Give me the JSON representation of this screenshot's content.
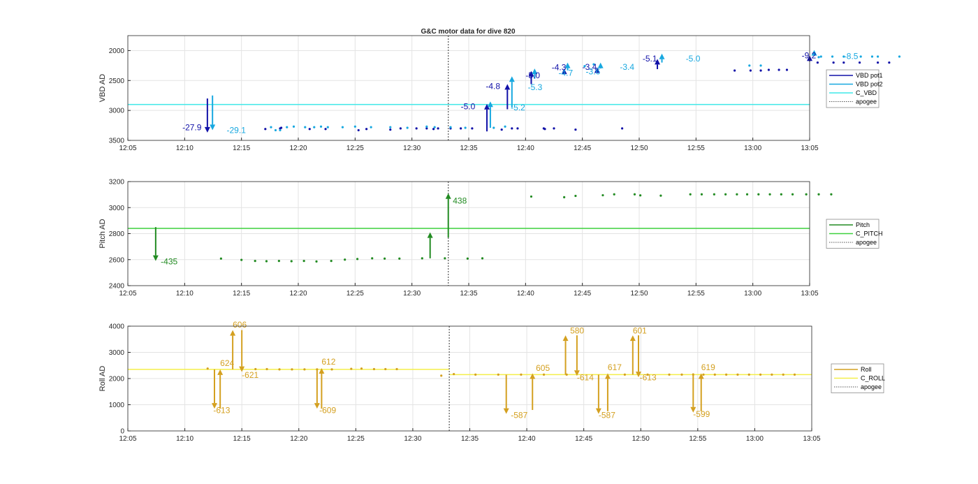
{
  "figure": {
    "title": "G&C motor data for dive 820"
  },
  "colors": {
    "pot1": "#1111a8",
    "pot2": "#17a8e0",
    "cvbd": "#3fe8e8",
    "pitch": "#228b22",
    "cpitch": "#3dd13d",
    "roll": "#d4a020",
    "croll": "#f4ef4a",
    "apogee": "#555555",
    "grid": "#e3e3e3",
    "axis": "#262626"
  },
  "chart_data": [
    {
      "id": "vbd",
      "type": "scatter",
      "ylabel": "VBD AD",
      "x_ticks": [
        "12:05",
        "12:10",
        "12:15",
        "12:20",
        "12:25",
        "12:30",
        "12:35",
        "12:40",
        "12:45",
        "12:50",
        "12:55",
        "13:00",
        "13:05"
      ],
      "y_ticks": [
        2000,
        2500,
        3000,
        3500
      ],
      "xlim": [
        "12:05",
        "13:05"
      ],
      "ylim": [
        1750,
        3500
      ],
      "y_reversed": true,
      "grid": true,
      "apogee_x": "12:33.2",
      "hlines": [
        {
          "series": "C_VBD",
          "y": 2900,
          "color_key": "cvbd"
        }
      ],
      "dots": [
        {
          "series": "VBD pot1",
          "color_key": "pot1",
          "x": [
            12.1,
            13.4,
            13.5,
            16,
            17.4,
            20.3,
            21,
            23.1,
            24,
            25.4,
            26.3,
            26.9,
            27.3,
            28.4,
            29.3,
            30.3,
            32.9,
            33.8,
            34.3,
            36.6,
            36.7,
            37.5,
            39.4,
            43.5,
            53.4,
            54.8,
            55.7,
            56.4,
            57.3,
            58,
            60.7,
            62.1,
            63,
            64.4,
            66,
            67
          ],
          "y": [
            3310,
            3300,
            3290,
            3310,
            3310,
            3330,
            3310,
            3320,
            3300,
            3300,
            3300,
            3310,
            3300,
            3300,
            3300,
            3300,
            3320,
            3300,
            3300,
            3300,
            3310,
            3300,
            3320,
            3300,
            2333,
            2333,
            2333,
            2322,
            2322,
            2322,
            2200,
            2200,
            2200,
            2200,
            2200,
            2200
          ]
        },
        {
          "series": "VBD pot2",
          "color_key": "pot2",
          "x": [
            12.6,
            13,
            13.4,
            14,
            14.6,
            15.6,
            16.4,
            17,
            17.6,
            18.9,
            20,
            21.4,
            23.1,
            24.6,
            26.3,
            27,
            28.4,
            29.7,
            32.2,
            33.2,
            40.2,
            41,
            54.7,
            55.7,
            60.8,
            61,
            62,
            63,
            64.5,
            65.5,
            66,
            67.9
          ],
          "y": [
            3280,
            3330,
            3330,
            3280,
            3270,
            3280,
            3280,
            3270,
            3280,
            3280,
            3270,
            3280,
            3280,
            3290,
            3270,
            3280,
            3280,
            3290,
            3290,
            3270,
            2260,
            2230,
            2250,
            2250,
            2110,
            2100,
            2100,
            2100,
            2100,
            2100,
            2100,
            2100
          ]
        }
      ],
      "arrows": [
        {
          "color_key": "pot1",
          "x": 7.0,
          "y0": 2800,
          "y1": 3370
        },
        {
          "color_key": "pot2",
          "x": 7.45,
          "y0": 2750,
          "y1": 3330
        },
        {
          "color_key": "pot1",
          "x": 31.6,
          "y0": 3350,
          "y1": 2890
        },
        {
          "color_key": "pot2",
          "x": 31.9,
          "y0": 3290,
          "y1": 2850
        },
        {
          "color_key": "pot1",
          "x": 33.4,
          "y0": 2980,
          "y1": 2560
        },
        {
          "color_key": "pot2",
          "x": 33.8,
          "y0": 2950,
          "y1": 2430
        },
        {
          "color_key": "pot1",
          "x": 35.5,
          "y0": 2560,
          "y1": 2340
        },
        {
          "color_key": "pot2",
          "x": 35.8,
          "y0": 2470,
          "y1": 2300
        },
        {
          "color_key": "pot1",
          "x": 38.4,
          "y0": 2400,
          "y1": 2300
        },
        {
          "color_key": "pot2",
          "x": 38.7,
          "y0": 2330,
          "y1": 2200
        },
        {
          "color_key": "pot1",
          "x": 41.3,
          "y0": 2350,
          "y1": 2280
        },
        {
          "color_key": "pot2",
          "x": 41.6,
          "y0": 2300,
          "y1": 2200
        },
        {
          "color_key": "pot1",
          "x": 46.6,
          "y0": 2310,
          "y1": 2140
        },
        {
          "color_key": "pot2",
          "x": 47.0,
          "y0": 2200,
          "y1": 2050
        },
        {
          "color_key": "pot1",
          "x": 60.0,
          "y0": 2180,
          "y1": 2080
        },
        {
          "color_key": "pot2",
          "x": 60.4,
          "y0": 2070,
          "y1": 1990
        }
      ],
      "annotations": [
        {
          "text": "-27.9",
          "color_key": "pot1",
          "x": 4.8,
          "y": 3330
        },
        {
          "text": "-29.1",
          "color_key": "pot2",
          "x": 8.7,
          "y": 3380
        },
        {
          "text": "-5.0",
          "color_key": "pot1",
          "x": 29.3,
          "y": 2980
        },
        {
          "text": "-5.2",
          "color_key": "pot2",
          "x": 33.7,
          "y": 3000
        },
        {
          "text": "-4.8",
          "color_key": "pot1",
          "x": 31.5,
          "y": 2640
        },
        {
          "text": "-5.3",
          "color_key": "pot2",
          "x": 35.2,
          "y": 2660
        },
        {
          "text": "-5.0",
          "color_key": "pot1",
          "x": 35.0,
          "y": 2460
        },
        {
          "text": "-4.3",
          "color_key": "pot1",
          "x": 37.3,
          "y": 2330
        },
        {
          "text": "-4.7",
          "color_key": "pot2",
          "x": 37.9,
          "y": 2420
        },
        {
          "text": "-3.4",
          "color_key": "pot1",
          "x": 40.0,
          "y": 2320
        },
        {
          "text": "-3.6",
          "color_key": "pot2",
          "x": 40.3,
          "y": 2400
        },
        {
          "text": "-3.4",
          "color_key": "pot2",
          "x": 43.3,
          "y": 2320
        },
        {
          "text": "-5.1",
          "color_key": "pot1",
          "x": 45.3,
          "y": 2180
        },
        {
          "text": "-5.0",
          "color_key": "pot2",
          "x": 49.1,
          "y": 2180
        },
        {
          "text": "-9.2",
          "color_key": "pot1",
          "x": 59.3,
          "y": 2130
        },
        {
          "text": "-8.5",
          "color_key": "pot2",
          "x": 63.0,
          "y": 2140
        }
      ],
      "legend": {
        "placement": "right",
        "entries": [
          {
            "label": "VBD pot1",
            "color_key": "pot1",
            "style": "solid"
          },
          {
            "label": "VBD pot2",
            "color_key": "pot2",
            "style": "solid"
          },
          {
            "label": "C_VBD",
            "color_key": "cvbd",
            "style": "solid"
          },
          {
            "label": "apogee",
            "color_key": "apogee",
            "style": "dotted"
          }
        ]
      }
    },
    {
      "id": "pitch",
      "type": "scatter",
      "ylabel": "Pitch AD",
      "x_ticks": [
        "12:05",
        "12:10",
        "12:15",
        "12:20",
        "12:25",
        "12:30",
        "12:35",
        "12:40",
        "12:45",
        "12:50",
        "12:55",
        "13:00",
        "13:05"
      ],
      "y_ticks": [
        2400,
        2600,
        2800,
        3000,
        3200
      ],
      "xlim": [
        "12:05",
        "13:05"
      ],
      "ylim": [
        2400,
        3200
      ],
      "y_reversed": false,
      "grid": true,
      "apogee_x": "12:33.2",
      "hlines": [
        {
          "series": "C_PITCH",
          "y": 2840,
          "color_key": "cpitch"
        }
      ],
      "dots": [
        {
          "series": "Pitch",
          "color_key": "pitch",
          "x": [
            8.2,
            10.0,
            11.2,
            12.2,
            13.3,
            14.4,
            15.5,
            16.6,
            17.9,
            19.1,
            20.2,
            21.5,
            22.6,
            23.9,
            25.9,
            27.9,
            29.9,
            31.2,
            35.5,
            38.4,
            39.4,
            41.8,
            42.8,
            44.6,
            45.1,
            46.9,
            49.5,
            50.5,
            51.6,
            52.6,
            53.6,
            54.5,
            55.5,
            56.5,
            57.5,
            58.5,
            59.7,
            60.8,
            61.9
          ],
          "y": [
            2608,
            2598,
            2590,
            2588,
            2590,
            2588,
            2590,
            2586,
            2590,
            2600,
            2605,
            2610,
            2608,
            2608,
            2610,
            2610,
            2608,
            2610,
            3085,
            3080,
            3090,
            3095,
            3102,
            3102,
            3094,
            3092,
            3102,
            3102,
            3102,
            3102,
            3102,
            3102,
            3102,
            3102,
            3102,
            3102,
            3102,
            3102,
            3102
          ]
        }
      ],
      "arrows": [
        {
          "color_key": "pitch",
          "x": 2.45,
          "y0": 2850,
          "y1": 2590
        },
        {
          "color_key": "pitch",
          "x": 26.6,
          "y0": 2610,
          "y1": 2810
        },
        {
          "color_key": "pitch",
          "x": 28.2,
          "y0": 2770,
          "y1": 3110
        }
      ],
      "annotations": [
        {
          "text": "-435",
          "color_key": "pitch",
          "x": 2.9,
          "y": 2565
        },
        {
          "text": "438",
          "color_key": "pitch",
          "x": 28.6,
          "y": 3030
        }
      ],
      "legend": {
        "placement": "right",
        "entries": [
          {
            "label": "Pitch",
            "color_key": "pitch",
            "style": "solid"
          },
          {
            "label": "C_PITCH",
            "color_key": "cpitch",
            "style": "solid"
          },
          {
            "label": "apogee",
            "color_key": "apogee",
            "style": "dotted"
          }
        ]
      }
    },
    {
      "id": "roll",
      "type": "scatter",
      "ylabel": "Roll AD",
      "x_ticks": [
        "12:05",
        "12:10",
        "12:15",
        "12:20",
        "12:25",
        "12:30",
        "12:35",
        "12:40",
        "12:45",
        "12:50",
        "12:55",
        "13:00",
        "13:05"
      ],
      "y_ticks": [
        0,
        1000,
        2000,
        3000,
        4000
      ],
      "xlim": [
        "12:05",
        "13:05"
      ],
      "ylim": [
        0,
        4000
      ],
      "y_reversed": false,
      "grid": true,
      "apogee_x": "12:33.2",
      "hlines": [
        {
          "series": "C_ROLL",
          "y": 2350,
          "color_key": "croll",
          "x_from": "12:05",
          "x_to": "12:33.2"
        },
        {
          "series": "C_ROLL",
          "y": 2150,
          "color_key": "croll",
          "x_from": "12:33.2",
          "x_to": "13:05"
        }
      ],
      "dots": [
        {
          "series": "Roll",
          "color_key": "roll",
          "x": [
            7.0,
            11.2,
            12.2,
            13.3,
            14.4,
            15.5,
            16.6,
            17.9,
            19.6,
            20.5,
            21.6,
            22.6,
            23.6,
            27.5,
            28.6,
            30.5,
            32.5,
            34.5,
            36.5,
            38.5,
            43.6,
            45.6,
            47.5,
            48.6,
            49.6,
            50.5,
            51.5,
            52.5,
            53.5,
            54.5,
            55.5,
            56.5,
            57.5,
            58.5
          ],
          "y": [
            2380,
            2360,
            2360,
            2350,
            2350,
            2350,
            2350,
            2350,
            2370,
            2380,
            2360,
            2360,
            2360,
            2110,
            2170,
            2150,
            2150,
            2150,
            2150,
            2150,
            2150,
            2150,
            2150,
            2150,
            2150,
            2150,
            2150,
            2150,
            2150,
            2150,
            2150,
            2150,
            2150,
            2150
          ]
        }
      ],
      "arrows": [
        {
          "color_key": "roll",
          "x": 7.6,
          "y0": 2350,
          "y1": 850
        },
        {
          "color_key": "roll",
          "x": 8.1,
          "y0": 850,
          "y1": 2350
        },
        {
          "color_key": "roll",
          "x": 9.2,
          "y0": 2350,
          "y1": 3850
        },
        {
          "color_key": "roll",
          "x": 10.0,
          "y0": 3850,
          "y1": 2250
        },
        {
          "color_key": "roll",
          "x": 16.6,
          "y0": 2350,
          "y1": 850
        },
        {
          "color_key": "roll",
          "x": 17.0,
          "y0": 850,
          "y1": 2400
        },
        {
          "color_key": "roll",
          "x": 33.2,
          "y0": 2150,
          "y1": 650
        },
        {
          "color_key": "roll",
          "x": 35.5,
          "y0": 800,
          "y1": 2200
        },
        {
          "color_key": "roll",
          "x": 38.4,
          "y0": 2150,
          "y1": 3650
        },
        {
          "color_key": "roll",
          "x": 39.4,
          "y0": 3650,
          "y1": 2100
        },
        {
          "color_key": "roll",
          "x": 41.3,
          "y0": 2150,
          "y1": 650
        },
        {
          "color_key": "roll",
          "x": 42.1,
          "y0": 750,
          "y1": 2200
        },
        {
          "color_key": "roll",
          "x": 44.3,
          "y0": 2150,
          "y1": 3650
        },
        {
          "color_key": "roll",
          "x": 44.8,
          "y0": 3650,
          "y1": 2050
        },
        {
          "color_key": "roll",
          "x": 49.6,
          "y0": 2200,
          "y1": 700
        },
        {
          "color_key": "roll",
          "x": 50.3,
          "y0": 750,
          "y1": 2200
        }
      ],
      "annotations": [
        {
          "text": "-613",
          "color_key": "roll",
          "x": 7.5,
          "y": 680
        },
        {
          "text": "624",
          "color_key": "roll",
          "x": 8.1,
          "y": 2480
        },
        {
          "text": "606",
          "color_key": "roll",
          "x": 9.2,
          "y": 3950
        },
        {
          "text": "-621",
          "color_key": "roll",
          "x": 10.0,
          "y": 2030
        },
        {
          "text": "-609",
          "color_key": "roll",
          "x": 16.8,
          "y": 680
        },
        {
          "text": "612",
          "color_key": "roll",
          "x": 17.0,
          "y": 2530
        },
        {
          "text": "-587",
          "color_key": "roll",
          "x": 33.6,
          "y": 490
        },
        {
          "text": "605",
          "color_key": "roll",
          "x": 35.8,
          "y": 2290
        },
        {
          "text": "580",
          "color_key": "roll",
          "x": 38.8,
          "y": 3720
        },
        {
          "text": "-614",
          "color_key": "roll",
          "x": 39.4,
          "y": 1930
        },
        {
          "text": "-587",
          "color_key": "roll",
          "x": 41.3,
          "y": 490
        },
        {
          "text": "617",
          "color_key": "roll",
          "x": 42.1,
          "y": 2320
        },
        {
          "text": "601",
          "color_key": "roll",
          "x": 44.3,
          "y": 3720
        },
        {
          "text": "-613",
          "color_key": "roll",
          "x": 44.9,
          "y": 1930
        },
        {
          "text": "-599",
          "color_key": "roll",
          "x": 49.6,
          "y": 540
        },
        {
          "text": "619",
          "color_key": "roll",
          "x": 50.3,
          "y": 2320
        }
      ],
      "legend": {
        "placement": "right",
        "entries": [
          {
            "label": "Roll",
            "color_key": "roll",
            "style": "solid"
          },
          {
            "label": "C_ROLL",
            "color_key": "croll",
            "style": "solid"
          },
          {
            "label": "apogee",
            "color_key": "apogee",
            "style": "dotted"
          }
        ]
      }
    }
  ]
}
